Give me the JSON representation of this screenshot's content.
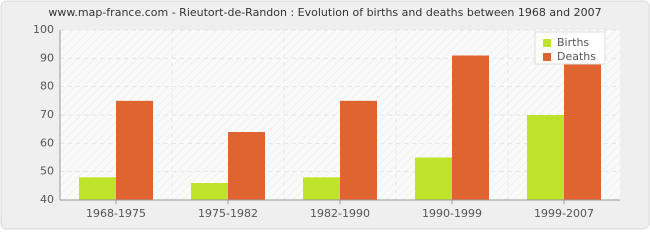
{
  "chart_data": {
    "type": "bar",
    "title": "www.map-france.com - Rieutort-de-Randon : Evolution of births and deaths between 1968 and 2007",
    "categories": [
      "1968-1975",
      "1975-1982",
      "1982-1990",
      "1990-1999",
      "1999-2007"
    ],
    "series": [
      {
        "name": "Births",
        "color": "#bfe22a",
        "values": [
          48,
          46,
          48,
          55,
          70
        ]
      },
      {
        "name": "Deaths",
        "color": "#e06430",
        "values": [
          75,
          64,
          75,
          91,
          89
        ]
      }
    ],
    "ylim": [
      40,
      100
    ],
    "yticks": [
      40,
      50,
      60,
      70,
      80,
      90,
      100
    ],
    "grid": true,
    "legend": "top-right"
  }
}
